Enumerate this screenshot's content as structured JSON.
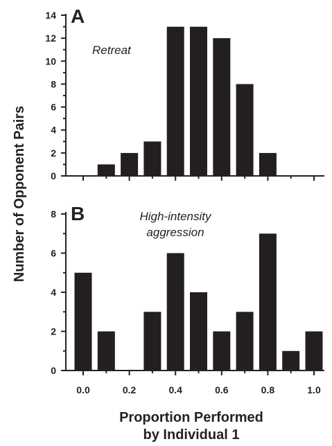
{
  "chart_data": [
    {
      "type": "bar",
      "panel_label": "A",
      "annotation": [
        "Retreat"
      ],
      "categories": [
        "0.0",
        "0.1",
        "0.2",
        "0.3",
        "0.4",
        "0.5",
        "0.6",
        "0.7",
        "0.8",
        "0.9",
        "1.0"
      ],
      "values": [
        0,
        1,
        2,
        3,
        13,
        13,
        12,
        8,
        2,
        0,
        0
      ],
      "ylim": [
        0,
        14
      ],
      "yticks": [
        0,
        2,
        4,
        6,
        8,
        10,
        12,
        14
      ],
      "bar_color": "#231f20",
      "grid": false
    },
    {
      "type": "bar",
      "panel_label": "B",
      "annotation": [
        "High-intensity",
        "aggression"
      ],
      "categories": [
        "0.0",
        "0.1",
        "0.2",
        "0.3",
        "0.4",
        "0.5",
        "0.6",
        "0.7",
        "0.8",
        "0.9",
        "1.0"
      ],
      "values": [
        5,
        2,
        0,
        3,
        6,
        4,
        2,
        3,
        7,
        1,
        2
      ],
      "ylim": [
        0,
        8
      ],
      "yticks": [
        0,
        2,
        4,
        6,
        8
      ],
      "xticks": [
        "0.0",
        "0.2",
        "0.4",
        "0.6",
        "0.8",
        "1.0"
      ],
      "bar_color": "#231f20",
      "grid": false
    }
  ],
  "xlabel": [
    "Proportion Performed",
    "by Individual 1"
  ],
  "ylabel": "Number of Opponent Pairs"
}
